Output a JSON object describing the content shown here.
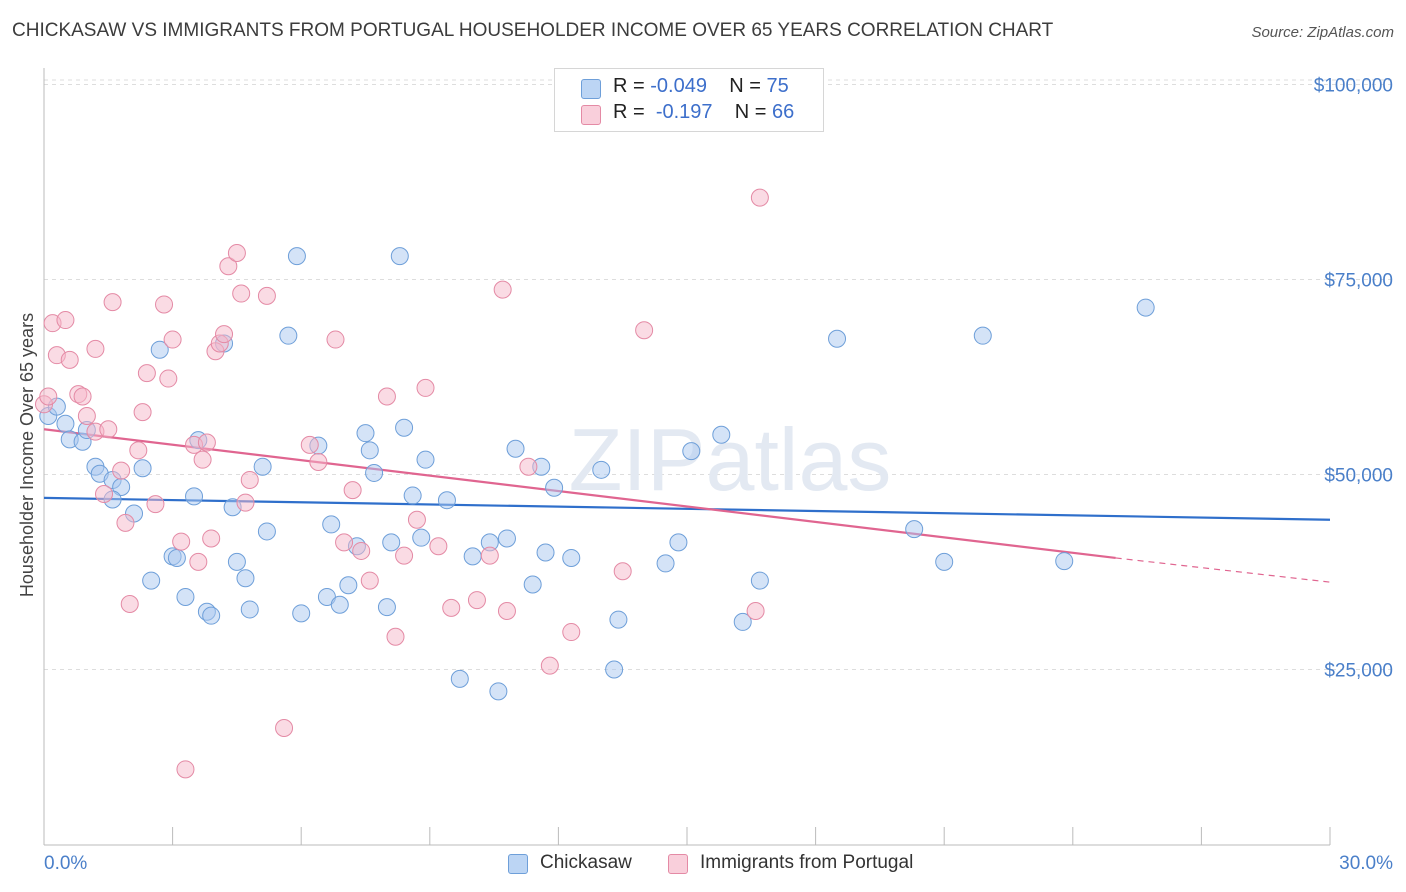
{
  "title": "CHICKASAW VS IMMIGRANTS FROM PORTUGAL HOUSEHOLDER INCOME OVER 65 YEARS CORRELATION CHART",
  "source": "Source: ZipAtlas.com",
  "watermark": "ZIPatlas",
  "legend": {
    "rows": [
      {
        "r_label": "R =",
        "r_value": "-0.049",
        "n_label": "N =",
        "n_value": "75",
        "color": "#a9c8f0"
      },
      {
        "r_label": "R =",
        "r_value": "-0.197",
        "n_label": "N =",
        "n_value": "66",
        "color": "#f5b8c9"
      }
    ]
  },
  "bottom_legend": [
    {
      "label": "Chickasaw",
      "color": "#a9c8f0"
    },
    {
      "label": "Immigrants from Portugal",
      "color": "#f5b8c9"
    }
  ],
  "chart_data": {
    "type": "scatter",
    "xlabel": "",
    "ylabel": "Householder Income Over 65 years",
    "x_tick_labels": [
      "0.0%",
      "30.0%"
    ],
    "y_tick_labels": [
      "$25,000",
      "$50,000",
      "$75,000",
      "$100,000"
    ],
    "y_ticks": [
      25000,
      50000,
      75000,
      100000
    ],
    "xlim": [
      0,
      30
    ],
    "ylim": [
      2500,
      102500
    ],
    "grid": true,
    "colors": {
      "blue_point": "#a9c8f0",
      "blue_stroke": "#6e9fd9",
      "blue_line": "#2f6fcb",
      "pink_point": "#f5b8c9",
      "pink_stroke": "#e48aa5",
      "pink_line": "#e06590"
    },
    "series": [
      {
        "name": "Chickasaw",
        "trend": {
          "x": [
            0,
            30
          ],
          "y": [
            47000,
            44200
          ]
        },
        "points": [
          [
            0.1,
            57500
          ],
          [
            0.3,
            58700
          ],
          [
            0.5,
            56500
          ],
          [
            0.6,
            54500
          ],
          [
            0.9,
            54200
          ],
          [
            1.0,
            55700
          ],
          [
            1.2,
            51000
          ],
          [
            1.3,
            50100
          ],
          [
            1.6,
            49300
          ],
          [
            1.8,
            48400
          ],
          [
            2.1,
            45000
          ],
          [
            1.6,
            46800
          ],
          [
            2.3,
            50800
          ],
          [
            2.5,
            36400
          ],
          [
            2.7,
            66000
          ],
          [
            3.0,
            39500
          ],
          [
            3.1,
            39300
          ],
          [
            3.3,
            34300
          ],
          [
            3.5,
            47200
          ],
          [
            3.6,
            54400
          ],
          [
            3.8,
            32400
          ],
          [
            3.9,
            31900
          ],
          [
            4.2,
            66800
          ],
          [
            4.4,
            45800
          ],
          [
            4.5,
            38800
          ],
          [
            4.7,
            36700
          ],
          [
            4.8,
            32700
          ],
          [
            5.1,
            51000
          ],
          [
            5.2,
            42700
          ],
          [
            5.7,
            67800
          ],
          [
            5.9,
            78000
          ],
          [
            6.0,
            32200
          ],
          [
            6.4,
            53700
          ],
          [
            6.6,
            34300
          ],
          [
            6.7,
            43600
          ],
          [
            6.9,
            33300
          ],
          [
            7.1,
            35800
          ],
          [
            7.3,
            40800
          ],
          [
            7.5,
            55300
          ],
          [
            7.6,
            53100
          ],
          [
            7.7,
            50200
          ],
          [
            8.0,
            33000
          ],
          [
            8.1,
            41300
          ],
          [
            8.3,
            78000
          ],
          [
            8.4,
            56000
          ],
          [
            8.6,
            47300
          ],
          [
            8.8,
            41900
          ],
          [
            8.9,
            51900
          ],
          [
            9.4,
            46700
          ],
          [
            9.7,
            23800
          ],
          [
            10.0,
            39500
          ],
          [
            10.4,
            41300
          ],
          [
            10.6,
            22200
          ],
          [
            10.8,
            41800
          ],
          [
            11.0,
            53300
          ],
          [
            11.4,
            35900
          ],
          [
            11.6,
            51000
          ],
          [
            11.7,
            40000
          ],
          [
            11.9,
            48300
          ],
          [
            12.3,
            39300
          ],
          [
            13.0,
            50600
          ],
          [
            13.3,
            25000
          ],
          [
            13.4,
            31400
          ],
          [
            14.5,
            38600
          ],
          [
            14.8,
            41300
          ],
          [
            15.1,
            53000
          ],
          [
            15.8,
            55100
          ],
          [
            16.3,
            31100
          ],
          [
            16.7,
            36400
          ],
          [
            18.5,
            67400
          ],
          [
            20.3,
            43000
          ],
          [
            21.0,
            38800
          ],
          [
            21.9,
            67800
          ],
          [
            23.8,
            38900
          ],
          [
            25.7,
            71400
          ]
        ]
      },
      {
        "name": "Immigrants from Portugal",
        "trend": {
          "x": [
            0,
            25
          ],
          "y": [
            55800,
            39300
          ]
        },
        "trend_dashed": {
          "x": [
            25,
            30
          ],
          "y": [
            39300,
            36200
          ]
        },
        "points": [
          [
            0.0,
            59000
          ],
          [
            0.2,
            69400
          ],
          [
            0.3,
            65300
          ],
          [
            0.5,
            69800
          ],
          [
            0.6,
            64700
          ],
          [
            0.8,
            60300
          ],
          [
            0.9,
            60000
          ],
          [
            1.0,
            57500
          ],
          [
            1.2,
            55500
          ],
          [
            1.2,
            66100
          ],
          [
            1.4,
            47500
          ],
          [
            1.5,
            55800
          ],
          [
            1.6,
            72100
          ],
          [
            1.8,
            50500
          ],
          [
            1.9,
            43800
          ],
          [
            2.0,
            33400
          ],
          [
            2.2,
            53100
          ],
          [
            2.3,
            58000
          ],
          [
            2.4,
            63000
          ],
          [
            2.6,
            46200
          ],
          [
            2.8,
            71800
          ],
          [
            2.9,
            62300
          ],
          [
            3.0,
            67300
          ],
          [
            3.2,
            41400
          ],
          [
            3.3,
            12200
          ],
          [
            3.5,
            53800
          ],
          [
            3.6,
            38800
          ],
          [
            3.7,
            51900
          ],
          [
            3.8,
            54100
          ],
          [
            3.9,
            41800
          ],
          [
            4.0,
            65800
          ],
          [
            4.1,
            66800
          ],
          [
            4.2,
            68000
          ],
          [
            4.3,
            76700
          ],
          [
            4.5,
            78400
          ],
          [
            4.6,
            73200
          ],
          [
            4.7,
            46400
          ],
          [
            4.8,
            49300
          ],
          [
            5.2,
            72900
          ],
          [
            5.6,
            17500
          ],
          [
            6.2,
            53800
          ],
          [
            6.4,
            51600
          ],
          [
            6.8,
            67300
          ],
          [
            7.0,
            41300
          ],
          [
            7.2,
            48000
          ],
          [
            7.4,
            40200
          ],
          [
            7.6,
            36400
          ],
          [
            8.0,
            60000
          ],
          [
            8.2,
            29200
          ],
          [
            8.4,
            39600
          ],
          [
            8.7,
            44200
          ],
          [
            8.9,
            61100
          ],
          [
            9.2,
            40800
          ],
          [
            9.5,
            32900
          ],
          [
            10.1,
            33900
          ],
          [
            10.4,
            39600
          ],
          [
            10.7,
            73700
          ],
          [
            10.8,
            32500
          ],
          [
            11.3,
            51000
          ],
          [
            11.8,
            25500
          ],
          [
            12.3,
            29800
          ],
          [
            13.5,
            37600
          ],
          [
            14.0,
            68500
          ],
          [
            16.6,
            32500
          ],
          [
            16.7,
            85500
          ],
          [
            0.1,
            60000
          ]
        ]
      }
    ]
  }
}
